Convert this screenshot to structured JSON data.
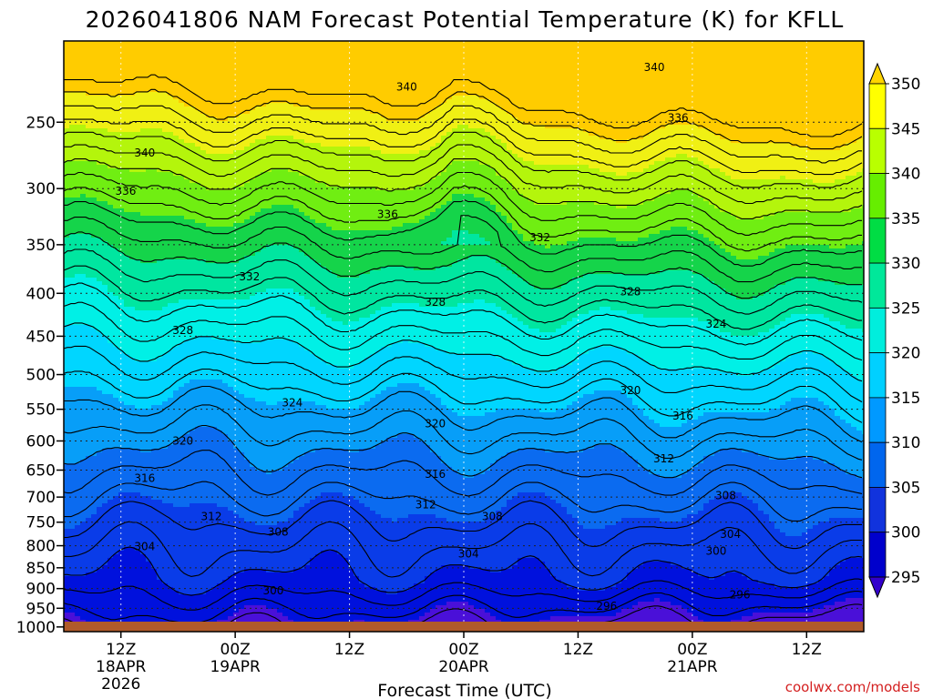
{
  "chart_data": {
    "type": "heatmap",
    "title": "2026041806 NAM Forecast Potential Temperature (K) for KFLL",
    "xlabel": "Forecast Time (UTC)",
    "ylabel": "",
    "credit": "coolwx.com/models",
    "x_ticks": [
      {
        "hour": 6,
        "lines": [
          "12Z",
          "18APR",
          "2026"
        ]
      },
      {
        "hour": 18,
        "lines": [
          "00Z",
          "19APR"
        ]
      },
      {
        "hour": 30,
        "lines": [
          "12Z"
        ]
      },
      {
        "hour": 42,
        "lines": [
          "00Z",
          "20APR"
        ]
      },
      {
        "hour": 54,
        "lines": [
          "12Z"
        ]
      },
      {
        "hour": 66,
        "lines": [
          "00Z",
          "21APR"
        ]
      },
      {
        "hour": 78,
        "lines": [
          "12Z"
        ]
      }
    ],
    "xlim_hours": [
      0,
      84
    ],
    "y_ticks": [
      250,
      300,
      350,
      400,
      450,
      500,
      550,
      600,
      650,
      700,
      750,
      800,
      850,
      900,
      950,
      1000
    ],
    "ylim_hpa": [
      200,
      1013
    ],
    "y_scale": "log",
    "grid": "dotted",
    "colorbar": {
      "labels": [
        350,
        345,
        340,
        335,
        330,
        325,
        320,
        315,
        310,
        305,
        300,
        295
      ],
      "colors": [
        "#ffd400",
        "#ffff00",
        "#b9ff00",
        "#66ee00",
        "#00dd44",
        "#00e89a",
        "#00eedd",
        "#00d0ff",
        "#0099ff",
        "#0066ee",
        "#1133dd",
        "#0000cc",
        "#3300cc"
      ]
    },
    "fill_colors": [
      {
        "min": 290,
        "max": 295,
        "color": "#4a10d8"
      },
      {
        "min": 295,
        "max": 300,
        "color": "#0011dd"
      },
      {
        "min": 300,
        "max": 305,
        "color": "#0a3ce8"
      },
      {
        "min": 305,
        "max": 310,
        "color": "#0b6bf0"
      },
      {
        "min": 310,
        "max": 315,
        "color": "#079ef8"
      },
      {
        "min": 315,
        "max": 320,
        "color": "#00d6ff"
      },
      {
        "min": 320,
        "max": 325,
        "color": "#00f0e6"
      },
      {
        "min": 325,
        "max": 330,
        "color": "#00e6a0"
      },
      {
        "min": 330,
        "max": 335,
        "color": "#15d44a"
      },
      {
        "min": 335,
        "max": 340,
        "color": "#70ee12"
      },
      {
        "min": 340,
        "max": 345,
        "color": "#b4f50c"
      },
      {
        "min": 345,
        "max": 350,
        "color": "#f0f014"
      },
      {
        "min": 350,
        "max": 356,
        "color": "#ffcc00"
      }
    ],
    "ground_color": "#b05a2a",
    "contour_labels": [
      {
        "value": "340",
        "hour": 8.5,
        "p": 272
      },
      {
        "value": "340",
        "hour": 36,
        "p": 227
      },
      {
        "value": "340",
        "hour": 62,
        "p": 215
      },
      {
        "value": "336",
        "hour": 6.5,
        "p": 302
      },
      {
        "value": "336",
        "hour": 34,
        "p": 322
      },
      {
        "value": "336",
        "hour": 64.5,
        "p": 247
      },
      {
        "value": "332",
        "hour": 19.5,
        "p": 382
      },
      {
        "value": "332",
        "hour": 50,
        "p": 343
      },
      {
        "value": "328",
        "hour": 12.5,
        "p": 443
      },
      {
        "value": "328",
        "hour": 39,
        "p": 410
      },
      {
        "value": "328",
        "hour": 59.5,
        "p": 398
      },
      {
        "value": "324",
        "hour": 24,
        "p": 540
      },
      {
        "value": "324",
        "hour": 68.5,
        "p": 435
      },
      {
        "value": "320",
        "hour": 12.5,
        "p": 600
      },
      {
        "value": "320",
        "hour": 39,
        "p": 572
      },
      {
        "value": "320",
        "hour": 59.5,
        "p": 522
      },
      {
        "value": "316",
        "hour": 8.5,
        "p": 665
      },
      {
        "value": "316",
        "hour": 39,
        "p": 657
      },
      {
        "value": "316",
        "hour": 65,
        "p": 560
      },
      {
        "value": "312",
        "hour": 15.5,
        "p": 738
      },
      {
        "value": "312",
        "hour": 38,
        "p": 715
      },
      {
        "value": "312",
        "hour": 63,
        "p": 630
      },
      {
        "value": "308",
        "hour": 22.5,
        "p": 770
      },
      {
        "value": "308",
        "hour": 45,
        "p": 738
      },
      {
        "value": "308",
        "hour": 69.5,
        "p": 697
      },
      {
        "value": "304",
        "hour": 8.5,
        "p": 802
      },
      {
        "value": "304",
        "hour": 42.5,
        "p": 818
      },
      {
        "value": "304",
        "hour": 70,
        "p": 775
      },
      {
        "value": "300",
        "hour": 22,
        "p": 905
      },
      {
        "value": "300",
        "hour": 68.5,
        "p": 812
      },
      {
        "value": "296",
        "hour": 57,
        "p": 945
      },
      {
        "value": "296",
        "hour": 71,
        "p": 915
      }
    ]
  }
}
